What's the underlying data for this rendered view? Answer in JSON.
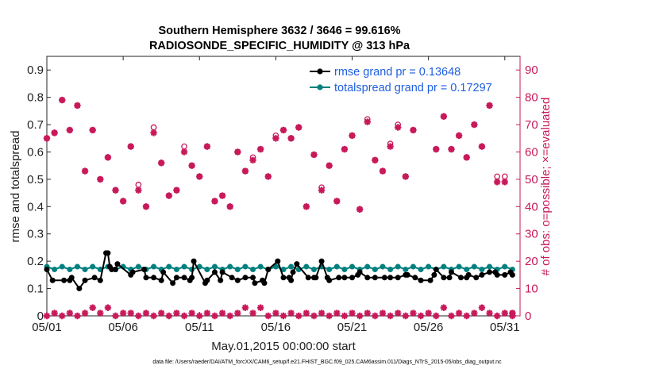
{
  "chart_data": {
    "type": "line",
    "title": [
      "Southern Hemisphere 3632 / 3646 = 99.616%",
      "RADIOSONDE_SPECIFIC_HUMIDITY @ 313 hPa"
    ],
    "xlabel": "May.01,2015 00:00:00 start",
    "ylabel_left": "rmse and totalspread",
    "ylabel_right": "# of obs: o=possible; ×=evaluated",
    "footer": "data file: /Users/raeder/DAI/ATM_forcXX/CAM6_setup/f.e21.FHIST_BGC.f09_025.CAM6assim.011/Diags_NTrS_2015-05/obs_diag_output.nc",
    "xlim": [
      1,
      32
    ],
    "ylim_left": [
      0,
      0.95
    ],
    "ylim_right": [
      0,
      95
    ],
    "xticks": [
      1,
      6,
      11,
      16,
      21,
      26,
      31
    ],
    "xtick_labels": [
      "05/01",
      "05/06",
      "05/11",
      "05/16",
      "05/21",
      "05/26",
      "05/31"
    ],
    "yticks_left": [
      "0",
      "0.1",
      "0.2",
      "0.3",
      "0.4",
      "0.5",
      "0.6",
      "0.7",
      "0.8",
      "0.9"
    ],
    "yticks_right": [
      "0",
      "10",
      "20",
      "30",
      "40",
      "50",
      "60",
      "70",
      "80",
      "90"
    ],
    "colors": {
      "rmse": "#000000",
      "spread": "#00807f",
      "obs": "#c8195a",
      "legend_text": "#1f5ee0"
    },
    "legend": [
      {
        "label": "rmse grand pr = 0.13648",
        "color": "#000000"
      },
      {
        "label": "totalspread grand pr = 0.17297",
        "color": "#00807f"
      }
    ],
    "series": [
      {
        "name": "rmse",
        "points": [
          [
            1.0,
            0.17
          ],
          [
            1.375,
            0.13
          ],
          [
            2.125,
            0.13
          ],
          [
            2.5,
            0.13
          ],
          [
            2.625,
            0.14
          ],
          [
            3.125,
            0.1
          ],
          [
            3.5,
            0.13
          ],
          [
            4.125,
            0.14
          ],
          [
            4.5,
            0.13
          ],
          [
            4.875,
            0.23
          ],
          [
            5.0,
            0.23
          ],
          [
            5.125,
            0.18
          ],
          [
            5.25,
            0.17
          ],
          [
            5.5,
            0.17
          ],
          [
            5.625,
            0.19
          ],
          [
            6.5,
            0.15
          ],
          [
            6.625,
            0.16
          ],
          [
            7.375,
            0.17
          ],
          [
            7.5,
            0.14
          ],
          [
            8.0,
            0.14
          ],
          [
            8.5,
            0.13
          ],
          [
            8.625,
            0.16
          ],
          [
            9.25,
            0.12
          ],
          [
            9.5,
            0.14
          ],
          [
            10.0,
            0.14
          ],
          [
            10.375,
            0.13
          ],
          [
            10.5,
            0.14
          ],
          [
            10.625,
            0.2
          ],
          [
            11.375,
            0.12
          ],
          [
            11.5,
            0.13
          ],
          [
            12.0,
            0.16
          ],
          [
            12.375,
            0.13
          ],
          [
            12.5,
            0.16
          ],
          [
            13.125,
            0.14
          ],
          [
            13.5,
            0.13
          ],
          [
            14.0,
            0.14
          ],
          [
            14.5,
            0.14
          ],
          [
            14.625,
            0.12
          ],
          [
            15.125,
            0.13
          ],
          [
            15.25,
            0.12
          ],
          [
            15.5,
            0.17
          ],
          [
            16.125,
            0.2
          ],
          [
            16.5,
            0.14
          ],
          [
            16.875,
            0.14
          ],
          [
            17.0,
            0.13
          ],
          [
            17.125,
            0.16
          ],
          [
            17.375,
            0.19
          ],
          [
            18.125,
            0.14
          ],
          [
            18.5,
            0.14
          ],
          [
            18.625,
            0.14
          ],
          [
            19.0,
            0.2
          ],
          [
            19.375,
            0.14
          ],
          [
            19.5,
            0.13
          ],
          [
            20.125,
            0.14
          ],
          [
            20.5,
            0.14
          ],
          [
            21.0,
            0.14
          ],
          [
            21.375,
            0.15
          ],
          [
            21.5,
            0.16
          ],
          [
            22.0,
            0.14
          ],
          [
            22.5,
            0.14
          ],
          [
            23.125,
            0.14
          ],
          [
            23.5,
            0.14
          ],
          [
            24.0,
            0.14
          ],
          [
            24.5,
            0.15
          ],
          [
            24.625,
            0.15
          ],
          [
            25.125,
            0.14
          ],
          [
            25.5,
            0.13
          ],
          [
            26.125,
            0.13
          ],
          [
            26.375,
            0.15
          ],
          [
            26.5,
            0.17
          ],
          [
            27.0,
            0.14
          ],
          [
            27.375,
            0.14
          ],
          [
            27.5,
            0.16
          ],
          [
            28.125,
            0.14
          ],
          [
            28.5,
            0.14
          ],
          [
            28.625,
            0.15
          ],
          [
            29.125,
            0.14
          ],
          [
            29.5,
            0.15
          ],
          [
            30.0,
            0.16
          ],
          [
            30.375,
            0.16
          ],
          [
            30.5,
            0.15
          ],
          [
            31.0,
            0.15
          ],
          [
            31.375,
            0.16
          ],
          [
            31.5,
            0.15
          ]
        ]
      },
      {
        "name": "totalspread",
        "points": [
          [
            1.0,
            0.18
          ],
          [
            1.5,
            0.17
          ],
          [
            2.0,
            0.18
          ],
          [
            2.5,
            0.17
          ],
          [
            3.0,
            0.18
          ],
          [
            3.5,
            0.17
          ],
          [
            4.0,
            0.18
          ],
          [
            4.5,
            0.17
          ],
          [
            5.0,
            0.18
          ],
          [
            5.5,
            0.17
          ],
          [
            6.0,
            0.18
          ],
          [
            6.5,
            0.17
          ],
          [
            7.0,
            0.18
          ],
          [
            7.5,
            0.17
          ],
          [
            8.0,
            0.18
          ],
          [
            8.5,
            0.17
          ],
          [
            9.0,
            0.18
          ],
          [
            9.5,
            0.17
          ],
          [
            10.0,
            0.18
          ],
          [
            10.5,
            0.17
          ],
          [
            11.0,
            0.18
          ],
          [
            11.5,
            0.17
          ],
          [
            12.0,
            0.18
          ],
          [
            12.5,
            0.17
          ],
          [
            13.0,
            0.18
          ],
          [
            13.5,
            0.17
          ],
          [
            14.0,
            0.18
          ],
          [
            14.5,
            0.17
          ],
          [
            15.0,
            0.18
          ],
          [
            15.5,
            0.17
          ],
          [
            16.0,
            0.18
          ],
          [
            16.5,
            0.17
          ],
          [
            17.0,
            0.18
          ],
          [
            17.5,
            0.17
          ],
          [
            18.0,
            0.18
          ],
          [
            18.5,
            0.17
          ],
          [
            19.0,
            0.18
          ],
          [
            19.5,
            0.17
          ],
          [
            20.0,
            0.18
          ],
          [
            20.5,
            0.17
          ],
          [
            21.0,
            0.18
          ],
          [
            21.5,
            0.17
          ],
          [
            22.0,
            0.18
          ],
          [
            22.5,
            0.17
          ],
          [
            23.0,
            0.18
          ],
          [
            23.5,
            0.17
          ],
          [
            24.0,
            0.18
          ],
          [
            24.5,
            0.17
          ],
          [
            25.0,
            0.18
          ],
          [
            25.5,
            0.17
          ],
          [
            26.0,
            0.18
          ],
          [
            26.5,
            0.17
          ],
          [
            27.0,
            0.18
          ],
          [
            27.5,
            0.17
          ],
          [
            28.0,
            0.18
          ],
          [
            28.5,
            0.17
          ],
          [
            29.0,
            0.18
          ],
          [
            29.5,
            0.17
          ],
          [
            30.0,
            0.18
          ],
          [
            30.5,
            0.17
          ],
          [
            31.0,
            0.18
          ],
          [
            31.5,
            0.17
          ]
        ]
      }
    ],
    "obs_possible": [
      [
        1,
        65
      ],
      [
        1.5,
        67
      ],
      [
        2,
        79
      ],
      [
        2.5,
        68
      ],
      [
        3,
        77
      ],
      [
        3.5,
        53
      ],
      [
        4,
        68
      ],
      [
        4.5,
        50
      ],
      [
        5,
        58
      ],
      [
        5.5,
        46
      ],
      [
        6,
        42
      ],
      [
        6.5,
        62
      ],
      [
        7,
        48
      ],
      [
        7.5,
        40
      ],
      [
        8,
        69
      ],
      [
        8.5,
        56
      ],
      [
        9,
        44
      ],
      [
        9.5,
        46
      ],
      [
        10,
        62
      ],
      [
        10.5,
        55
      ],
      [
        11,
        51
      ],
      [
        11.5,
        62
      ],
      [
        12,
        42
      ],
      [
        12.5,
        44
      ],
      [
        13,
        40
      ],
      [
        13.5,
        60
      ],
      [
        14,
        53
      ],
      [
        14.5,
        58
      ],
      [
        15,
        61
      ],
      [
        15.5,
        51
      ],
      [
        16,
        66
      ],
      [
        16.5,
        68
      ],
      [
        17,
        65
      ],
      [
        17.5,
        69
      ],
      [
        18,
        40
      ],
      [
        18.5,
        59
      ],
      [
        19,
        47
      ],
      [
        19.5,
        55
      ],
      [
        20,
        42
      ],
      [
        20.5,
        61
      ],
      [
        21,
        66
      ],
      [
        21.5,
        39
      ],
      [
        22,
        72
      ],
      [
        22.5,
        57
      ],
      [
        23,
        53
      ],
      [
        23.5,
        63
      ],
      [
        24,
        70
      ],
      [
        24.5,
        51
      ],
      [
        25,
        68
      ],
      [
        25.5,
        89
      ],
      [
        26,
        83
      ],
      [
        26.5,
        61
      ],
      [
        27,
        73
      ],
      [
        27.5,
        61
      ],
      [
        28,
        66
      ],
      [
        28.5,
        58
      ],
      [
        29,
        70
      ],
      [
        29.5,
        62
      ],
      [
        30,
        77
      ],
      [
        30.5,
        51
      ],
      [
        31,
        51
      ],
      [
        31.5,
        1
      ]
    ],
    "obs_evaluated": [
      [
        1,
        65
      ],
      [
        1.5,
        67
      ],
      [
        2,
        79
      ],
      [
        2.5,
        68
      ],
      [
        3,
        77
      ],
      [
        3.5,
        53
      ],
      [
        4,
        68
      ],
      [
        4.5,
        50
      ],
      [
        5,
        58
      ],
      [
        5.5,
        46
      ],
      [
        6,
        42
      ],
      [
        6.5,
        62
      ],
      [
        7,
        46
      ],
      [
        7.5,
        40
      ],
      [
        8,
        67
      ],
      [
        8.5,
        56
      ],
      [
        9,
        44
      ],
      [
        9.5,
        46
      ],
      [
        10,
        60
      ],
      [
        10.5,
        55
      ],
      [
        11,
        51
      ],
      [
        11.5,
        62
      ],
      [
        12,
        42
      ],
      [
        12.5,
        44
      ],
      [
        13,
        40
      ],
      [
        13.5,
        60
      ],
      [
        14,
        53
      ],
      [
        14.5,
        57
      ],
      [
        15,
        61
      ],
      [
        15.5,
        51
      ],
      [
        16,
        65
      ],
      [
        16.5,
        68
      ],
      [
        17,
        65
      ],
      [
        17.5,
        69
      ],
      [
        18,
        40
      ],
      [
        18.5,
        59
      ],
      [
        19,
        46
      ],
      [
        19.5,
        55
      ],
      [
        20,
        42
      ],
      [
        20.5,
        61
      ],
      [
        21,
        66
      ],
      [
        21.5,
        39
      ],
      [
        22,
        71
      ],
      [
        22.5,
        57
      ],
      [
        23,
        53
      ],
      [
        23.5,
        62
      ],
      [
        24,
        69
      ],
      [
        24.5,
        51
      ],
      [
        25,
        68
      ],
      [
        25.5,
        88
      ],
      [
        26,
        83
      ],
      [
        26.5,
        61
      ],
      [
        27,
        73
      ],
      [
        27.5,
        61
      ],
      [
        28,
        66
      ],
      [
        28.5,
        58
      ],
      [
        29,
        70
      ],
      [
        29.5,
        62
      ],
      [
        30,
        77
      ],
      [
        30.5,
        49
      ],
      [
        31,
        49
      ],
      [
        31.5,
        1
      ]
    ],
    "obs_bottom": [
      [
        1,
        0
      ],
      [
        1.5,
        1
      ],
      [
        2,
        0
      ],
      [
        2.5,
        1
      ],
      [
        3,
        0
      ],
      [
        3.5,
        1
      ],
      [
        4,
        3
      ],
      [
        4.5,
        1
      ],
      [
        5,
        3
      ],
      [
        5.5,
        0
      ],
      [
        6,
        1
      ],
      [
        6.5,
        1
      ],
      [
        7,
        0
      ],
      [
        7.5,
        1
      ],
      [
        8,
        0
      ],
      [
        8.5,
        1
      ],
      [
        9,
        0
      ],
      [
        9.5,
        1
      ],
      [
        10,
        0
      ],
      [
        10.5,
        1
      ],
      [
        11,
        0
      ],
      [
        11.5,
        1
      ],
      [
        12,
        0
      ],
      [
        12.5,
        1
      ],
      [
        13,
        0
      ],
      [
        13.5,
        1
      ],
      [
        14,
        3
      ],
      [
        14.5,
        1
      ],
      [
        15,
        3
      ],
      [
        15.5,
        0
      ],
      [
        16,
        1
      ],
      [
        16.5,
        0
      ],
      [
        17,
        1
      ],
      [
        17.5,
        0
      ],
      [
        18,
        1
      ],
      [
        18.5,
        0
      ],
      [
        19,
        1
      ],
      [
        19.5,
        0
      ],
      [
        20,
        1
      ],
      [
        20.5,
        0
      ],
      [
        21,
        1
      ],
      [
        21.5,
        0
      ],
      [
        22,
        1
      ],
      [
        22.5,
        0
      ],
      [
        23,
        1
      ],
      [
        23.5,
        0
      ],
      [
        24,
        1
      ],
      [
        24.5,
        0
      ],
      [
        25,
        1
      ],
      [
        25.5,
        0
      ],
      [
        26,
        1
      ],
      [
        26.5,
        0
      ],
      [
        27,
        3
      ],
      [
        27.5,
        0
      ],
      [
        28,
        1
      ],
      [
        28.5,
        0
      ],
      [
        29,
        1
      ],
      [
        29.5,
        3
      ],
      [
        30,
        1
      ],
      [
        30.5,
        0
      ],
      [
        31,
        1
      ],
      [
        31.5,
        0
      ]
    ]
  }
}
